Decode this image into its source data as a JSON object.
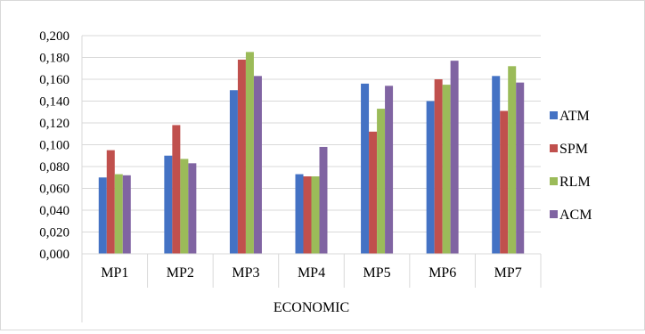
{
  "chart_data": {
    "type": "bar",
    "title": "",
    "xlabel": "ECONOMIC",
    "ylabel": "",
    "ylim": [
      0,
      0.2
    ],
    "yticks": [
      0,
      0.02,
      0.04,
      0.06,
      0.08,
      0.1,
      0.12,
      0.14,
      0.16,
      0.18,
      0.2
    ],
    "ytick_labels": [
      "0,000",
      "0,020",
      "0,040",
      "0,060",
      "0,080",
      "0,100",
      "0,120",
      "0,140",
      "0,160",
      "0,180",
      "0,200"
    ],
    "grid": true,
    "legend_position": "right",
    "categories": [
      "MP1",
      "MP2",
      "MP3",
      "MP4",
      "MP5",
      "MP6",
      "MP7"
    ],
    "series": [
      {
        "name": "ATM",
        "color": "#4472C4",
        "values": [
          0.07,
          0.09,
          0.15,
          0.073,
          0.156,
          0.14,
          0.163
        ]
      },
      {
        "name": "SPM",
        "color": "#C0504D",
        "values": [
          0.095,
          0.118,
          0.178,
          0.071,
          0.112,
          0.16,
          0.131
        ]
      },
      {
        "name": "RLM",
        "color": "#9BBB59",
        "values": [
          0.073,
          0.087,
          0.185,
          0.071,
          0.133,
          0.155,
          0.172
        ]
      },
      {
        "name": "ACM",
        "color": "#8064A2",
        "values": [
          0.072,
          0.083,
          0.163,
          0.098,
          0.154,
          0.177,
          0.157
        ]
      }
    ]
  }
}
